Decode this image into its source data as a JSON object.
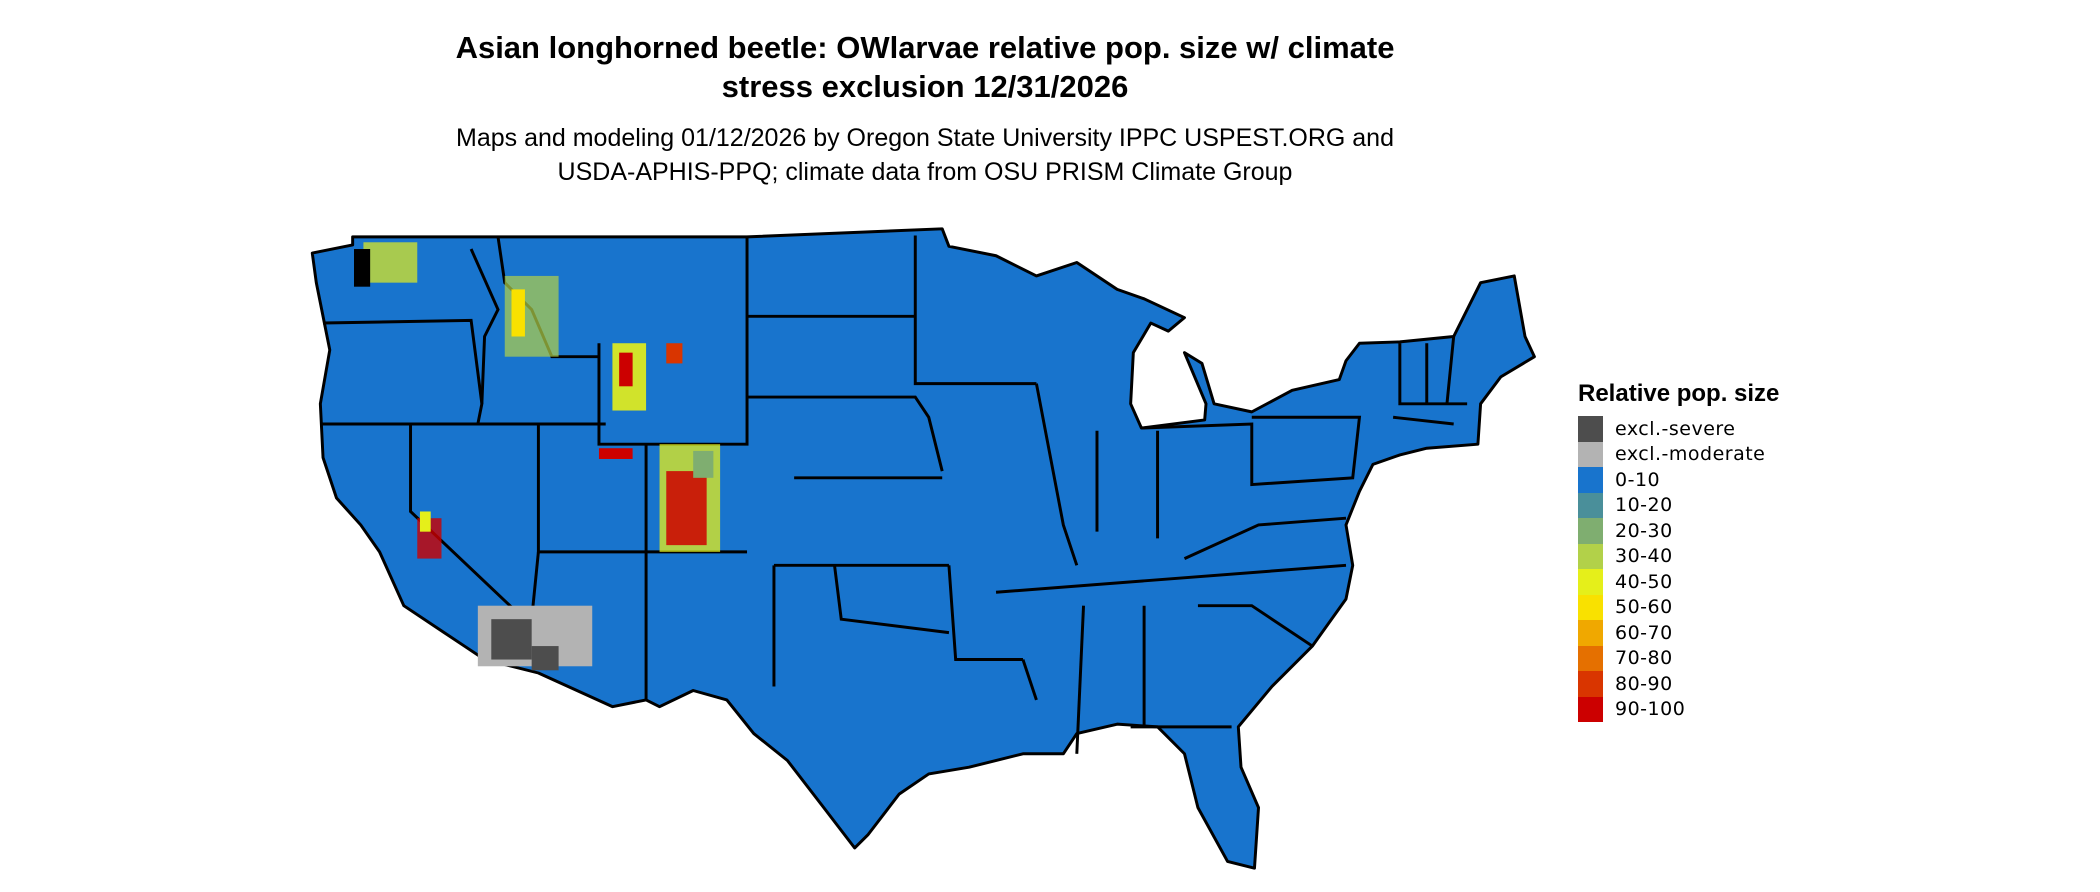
{
  "title_line1": "Asian longhorned beetle: OWlarvae relative pop. size w/ climate",
  "title_line2": "stress exclusion 12/31/2026",
  "subtitle_line1": "Maps and modeling 01/12/2026 by Oregon State University IPPC USPEST.ORG and",
  "subtitle_line2": "USDA-APHIS-PPQ; climate data from OSU PRISM Climate Group",
  "map": {
    "region": "Contiguous United States",
    "dominant_class": "0-10",
    "background_fill": "#1874cd",
    "border_color": "#000000"
  },
  "legend": {
    "title": "Relative pop. size",
    "items": [
      {
        "label": "excl.-severe",
        "color": "#4d4d4d"
      },
      {
        "label": "excl.-moderate",
        "color": "#b3b3b3"
      },
      {
        "label": "0-10",
        "color": "#1874cd"
      },
      {
        "label": "10-20",
        "color": "#4a8f9a"
      },
      {
        "label": "20-30",
        "color": "#7fae70"
      },
      {
        "label": "30-40",
        "color": "#b2d149"
      },
      {
        "label": "40-50",
        "color": "#e5ef1a"
      },
      {
        "label": "50-60",
        "color": "#f9e100"
      },
      {
        "label": "60-70",
        "color": "#f0a800"
      },
      {
        "label": "70-80",
        "color": "#e57000"
      },
      {
        "label": "80-90",
        "color": "#d93500"
      },
      {
        "label": "90-100",
        "color": "#cc0000"
      }
    ]
  }
}
